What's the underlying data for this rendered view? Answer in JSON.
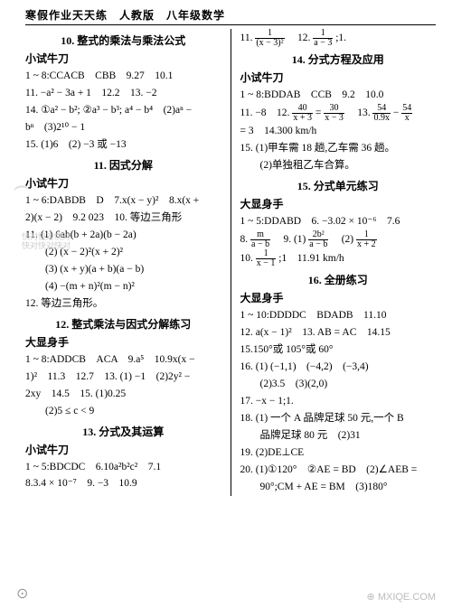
{
  "header": "寒假作业天天练　人教版　八年级数学",
  "left": {
    "s10_title": "10. 整式的乘法与乘法公式",
    "xs1": "小试牛刀",
    "l1": "1 ~ 8:CCACB　CBB　9.27　10.1",
    "l2": "11. −a² − 3a + 1　12.2　13. −2",
    "l3": "14. ①a² − b²; ②a³ − b³; a⁴ − b⁴　(2)aⁿ −",
    "l4": "bⁿ　(3)2¹⁰ − 1",
    "l5": "15. (1)6　(2) −3 或 −13",
    "s11_title": "11. 因式分解",
    "xs2": "小试牛刀",
    "l6": "1 ~ 6:DABDB　D　7.x(x − y)²　8.x(x +",
    "l7": "2)(x − 2)　9.2 023　10. 等边三角形",
    "l8": "11. (1) 6ab(b + 2a)(b − 2a)",
    "l9": "(2) (x − 2)²(x + 2)²",
    "l10": "(3) (x + y)(a + b)(a − b)",
    "l11": "(4) −(m + n)²(m − n)²",
    "l12": "12. 等边三角形。",
    "s12_title": "12. 整式乘法与因式分解练习",
    "ds1": "大显身手",
    "l13": "1 ~ 8:ADDCB　ACA　9.a⁵　10.9x(x −",
    "l14": "1)²　11.3　12.7　13. (1) −1　(2)2y² −",
    "l15": "2xy　14.5　15. (1)0.25",
    "l16": "(2)5 ≤ c < 9",
    "s13_title": "13. 分式及其运算",
    "xs3": "小试牛刀",
    "l17": "1 ~ 5:BDCDC　6.10a²b²c²　7.1",
    "l18": "8.3.4 × 10⁻⁷　9. −3　10.9"
  },
  "right": {
    "r1a": "11.",
    "r1_f1n": "1",
    "r1_f1d": "(x − 3)²",
    "r1b": "　12.",
    "r1_f2n": "1",
    "r1_f2d": "a − 3",
    "r1c": ";1.",
    "s14_title": "14. 分式方程及应用",
    "xs1": "小试牛刀",
    "r2": "1 ~ 8:BDDAB　CCB　9.2　10.0",
    "r3a": "11. −8　12.",
    "r3_f1n": "40",
    "r3_f1d": "x + 3",
    "r3b": " = ",
    "r3_f2n": "30",
    "r3_f2d": "x − 3",
    "r3c": "　13.",
    "r3_f3n": "54",
    "r3_f3d": "0.9x",
    "r3d": " − ",
    "r3_f4n": "54",
    "r3_f4d": "x",
    "r4": " = 3　14.300 km/h",
    "r5": "15. (1)甲车需 18 趟,乙车需 36 趟。",
    "r6": "(2)单独租乙车合算。",
    "s15_title": "15. 分式单元练习",
    "ds1": "大显身手",
    "r7": "1 ~ 5:DDABD　6. −3.02 × 10⁻⁶　7.6",
    "r8a": "8.",
    "r8_f1n": "m",
    "r8_f1d": "a − b",
    "r8b": "　9. (1)",
    "r8_f2n": "2b²",
    "r8_f2d": "a − b",
    "r8c": "　(2)",
    "r8_f3n": "1",
    "r8_f3d": "x + 2",
    "r9a": "10.",
    "r9_f1n": "1",
    "r9_f1d": "x − 1",
    "r9b": ";1　11.91 km/h",
    "s16_title": "16. 全册练习",
    "ds2": "大显身手",
    "r10": "1 ~ 10:DDDDC　BDADB　11.10",
    "r11": "12. a(x − 1)²　13. AB = AC　14.15",
    "r12": "15.150°或 105°或 60°",
    "r13": "16. (1) (−1,1)　(−4,2)　(−3,4)",
    "r14": "(2)3.5　(3)(2,0)",
    "r15": "17. −x − 1;1.",
    "r16": "18. (1) 一个 A 品牌足球 50 元,一个 B",
    "r17": "品牌足球 80 元　(2)31",
    "r18": "19. (2)DE⊥CE",
    "r19": "20. (1)①120°　②AE = BD　(2)∠AEB =",
    "r20": "90°;CM + AE = BM　(3)180°"
  },
  "wm1": "⌢",
  "wm2a": "快对快对快对",
  "wm2b": "快对快对快对",
  "bottom_logo": "⊕ MXIQE.COM",
  "bottom_circle": "⊙"
}
